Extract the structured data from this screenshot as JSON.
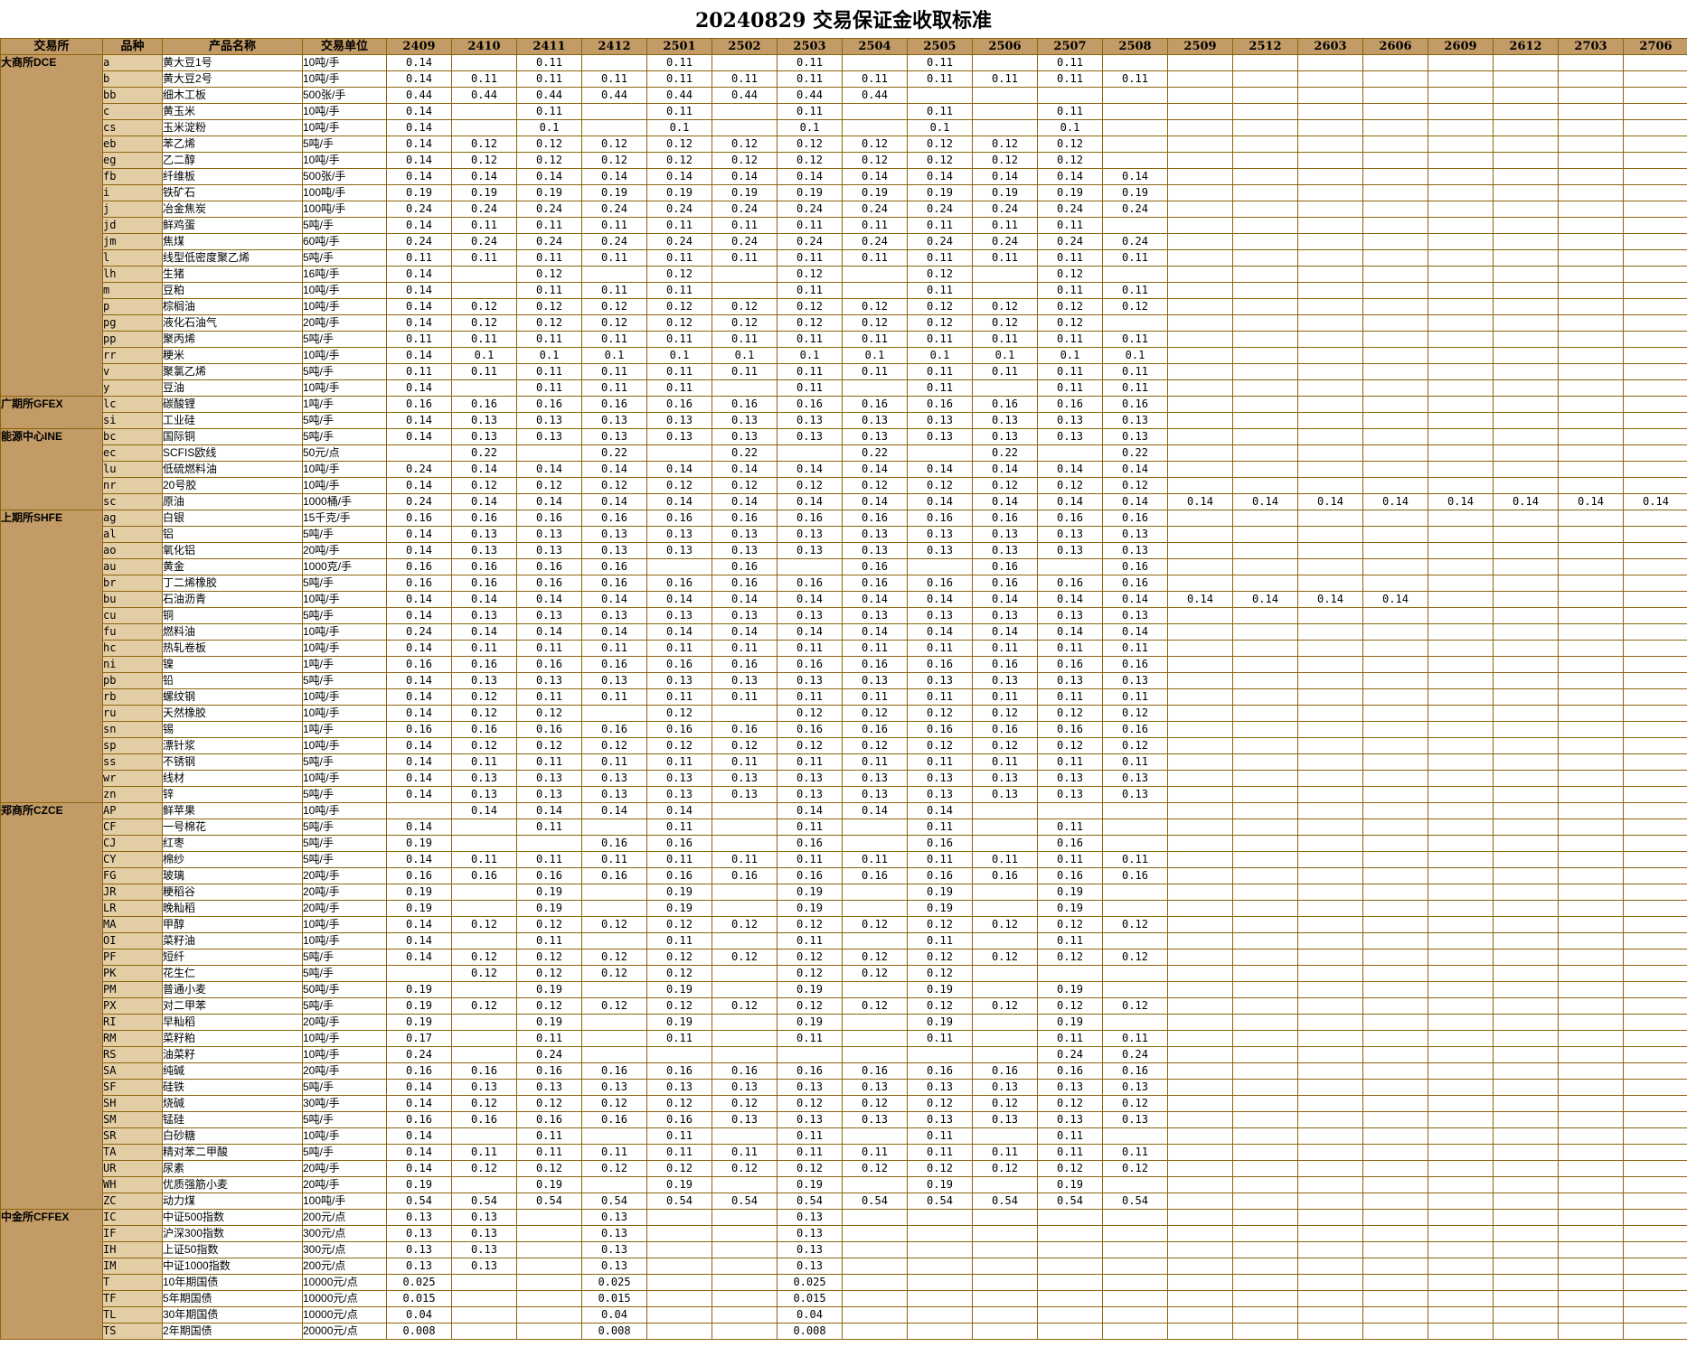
{
  "title": "20240829 交易保证金收取标准",
  "colors": {
    "header_bg": "#C39B66",
    "variety_col_bg": "#E3CDA4",
    "grid_border": "#8B650D",
    "cell_bg": "#FFFFFF",
    "text": "#000000"
  },
  "table": {
    "fixed_headers": [
      "交易所",
      "品种",
      "产品名称",
      "交易单位"
    ],
    "contract_headers": [
      "2409",
      "2410",
      "2411",
      "2412",
      "2501",
      "2502",
      "2503",
      "2504",
      "2505",
      "2506",
      "2507",
      "2508",
      "2509",
      "2512",
      "2603",
      "2606",
      "2609",
      "2612",
      "2703",
      "2706"
    ],
    "values_note": "v = comma separated margin ratios aligned to contract_headers, empty = blank cell",
    "groups": [
      {
        "exchange": "大商所DCE",
        "rows": [
          {
            "code": "a",
            "name": "黄大豆1号",
            "unit": "10吨/手",
            "v": "0.14,,0.11,,0.11,,0.11,,0.11,,0.11"
          },
          {
            "code": "b",
            "name": "黄大豆2号",
            "unit": "10吨/手",
            "v": "0.14,0.11,0.11,0.11,0.11,0.11,0.11,0.11,0.11,0.11,0.11,0.11"
          },
          {
            "code": "bb",
            "name": "细木工板",
            "unit": "500张/手",
            "v": "0.44,0.44,0.44,0.44,0.44,0.44,0.44,0.44"
          },
          {
            "code": "c",
            "name": "黄玉米",
            "unit": "10吨/手",
            "v": "0.14,,0.11,,0.11,,0.11,,0.11,,0.11"
          },
          {
            "code": "cs",
            "name": "玉米淀粉",
            "unit": "10吨/手",
            "v": "0.14,,0.1,,0.1,,0.1,,0.1,,0.1"
          },
          {
            "code": "eb",
            "name": "苯乙烯",
            "unit": "5吨/手",
            "v": "0.14,0.12,0.12,0.12,0.12,0.12,0.12,0.12,0.12,0.12,0.12"
          },
          {
            "code": "eg",
            "name": "乙二醇",
            "unit": "10吨/手",
            "v": "0.14,0.12,0.12,0.12,0.12,0.12,0.12,0.12,0.12,0.12,0.12"
          },
          {
            "code": "fb",
            "name": "纤维板",
            "unit": "500张/手",
            "v": "0.14,0.14,0.14,0.14,0.14,0.14,0.14,0.14,0.14,0.14,0.14,0.14"
          },
          {
            "code": "i",
            "name": "铁矿石",
            "unit": "100吨/手",
            "v": "0.19,0.19,0.19,0.19,0.19,0.19,0.19,0.19,0.19,0.19,0.19,0.19"
          },
          {
            "code": "j",
            "name": "冶金焦炭",
            "unit": "100吨/手",
            "v": "0.24,0.24,0.24,0.24,0.24,0.24,0.24,0.24,0.24,0.24,0.24,0.24"
          },
          {
            "code": "jd",
            "name": "鲜鸡蛋",
            "unit": "5吨/手",
            "v": "0.14,0.11,0.11,0.11,0.11,0.11,0.11,0.11,0.11,0.11,0.11"
          },
          {
            "code": "jm",
            "name": "焦煤",
            "unit": "60吨/手",
            "v": "0.24,0.24,0.24,0.24,0.24,0.24,0.24,0.24,0.24,0.24,0.24,0.24"
          },
          {
            "code": "l",
            "name": "线型低密度聚乙烯",
            "unit": "5吨/手",
            "v": "0.11,0.11,0.11,0.11,0.11,0.11,0.11,0.11,0.11,0.11,0.11,0.11"
          },
          {
            "code": "lh",
            "name": "生猪",
            "unit": "16吨/手",
            "v": "0.14,,0.12,,0.12,,0.12,,0.12,,0.12"
          },
          {
            "code": "m",
            "name": "豆粕",
            "unit": "10吨/手",
            "v": "0.14,,0.11,0.11,0.11,,0.11,,0.11,,0.11,0.11"
          },
          {
            "code": "p",
            "name": "棕榈油",
            "unit": "10吨/手",
            "v": "0.14,0.12,0.12,0.12,0.12,0.12,0.12,0.12,0.12,0.12,0.12,0.12"
          },
          {
            "code": "pg",
            "name": "液化石油气",
            "unit": "20吨/手",
            "v": "0.14,0.12,0.12,0.12,0.12,0.12,0.12,0.12,0.12,0.12,0.12"
          },
          {
            "code": "pp",
            "name": "聚丙烯",
            "unit": "5吨/手",
            "v": "0.11,0.11,0.11,0.11,0.11,0.11,0.11,0.11,0.11,0.11,0.11,0.11"
          },
          {
            "code": "rr",
            "name": "粳米",
            "unit": "10吨/手",
            "v": "0.14,0.1,0.1,0.1,0.1,0.1,0.1,0.1,0.1,0.1,0.1,0.1"
          },
          {
            "code": "v",
            "name": "聚氯乙烯",
            "unit": "5吨/手",
            "v": "0.11,0.11,0.11,0.11,0.11,0.11,0.11,0.11,0.11,0.11,0.11,0.11"
          },
          {
            "code": "y",
            "name": "豆油",
            "unit": "10吨/手",
            "v": "0.14,,0.11,0.11,0.11,,0.11,,0.11,,0.11,0.11"
          }
        ]
      },
      {
        "exchange": "广期所GFEX",
        "rows": [
          {
            "code": "lc",
            "name": "碳酸锂",
            "unit": "1吨/手",
            "v": "0.16,0.16,0.16,0.16,0.16,0.16,0.16,0.16,0.16,0.16,0.16,0.16"
          },
          {
            "code": "si",
            "name": "工业硅",
            "unit": "5吨/手",
            "v": "0.14,0.13,0.13,0.13,0.13,0.13,0.13,0.13,0.13,0.13,0.13,0.13"
          }
        ]
      },
      {
        "exchange": "能源中心INE",
        "rows": [
          {
            "code": "bc",
            "name": "国际铜",
            "unit": "5吨/手",
            "v": "0.14,0.13,0.13,0.13,0.13,0.13,0.13,0.13,0.13,0.13,0.13,0.13"
          },
          {
            "code": "ec",
            "name": "SCFIS欧线",
            "unit": "50元/点",
            "v": ",0.22,,0.22,,0.22,,0.22,,0.22,,0.22"
          },
          {
            "code": "lu",
            "name": "低硫燃料油",
            "unit": "10吨/手",
            "v": "0.24,0.14,0.14,0.14,0.14,0.14,0.14,0.14,0.14,0.14,0.14,0.14"
          },
          {
            "code": "nr",
            "name": "20号胶",
            "unit": "10吨/手",
            "v": "0.14,0.12,0.12,0.12,0.12,0.12,0.12,0.12,0.12,0.12,0.12,0.12"
          },
          {
            "code": "sc",
            "name": "原油",
            "unit": "1000桶/手",
            "v": "0.24,0.14,0.14,0.14,0.14,0.14,0.14,0.14,0.14,0.14,0.14,0.14,0.14,0.14,0.14,0.14,0.14,0.14,0.14,0.14"
          }
        ]
      },
      {
        "exchange": "上期所SHFE",
        "rows": [
          {
            "code": "ag",
            "name": "白银",
            "unit": "15千克/手",
            "v": "0.16,0.16,0.16,0.16,0.16,0.16,0.16,0.16,0.16,0.16,0.16,0.16"
          },
          {
            "code": "al",
            "name": "铝",
            "unit": "5吨/手",
            "v": "0.14,0.13,0.13,0.13,0.13,0.13,0.13,0.13,0.13,0.13,0.13,0.13"
          },
          {
            "code": "ao",
            "name": "氧化铝",
            "unit": "20吨/手",
            "v": "0.14,0.13,0.13,0.13,0.13,0.13,0.13,0.13,0.13,0.13,0.13,0.13"
          },
          {
            "code": "au",
            "name": "黄金",
            "unit": "1000克/手",
            "v": "0.16,0.16,0.16,0.16,,0.16,,0.16,,0.16,,0.16"
          },
          {
            "code": "br",
            "name": "丁二烯橡胶",
            "unit": "5吨/手",
            "v": "0.16,0.16,0.16,0.16,0.16,0.16,0.16,0.16,0.16,0.16,0.16,0.16"
          },
          {
            "code": "bu",
            "name": "石油沥青",
            "unit": "10吨/手",
            "v": "0.14,0.14,0.14,0.14,0.14,0.14,0.14,0.14,0.14,0.14,0.14,0.14,0.14,0.14,0.14,0.14"
          },
          {
            "code": "cu",
            "name": "铜",
            "unit": "5吨/手",
            "v": "0.14,0.13,0.13,0.13,0.13,0.13,0.13,0.13,0.13,0.13,0.13,0.13"
          },
          {
            "code": "fu",
            "name": "燃料油",
            "unit": "10吨/手",
            "v": "0.24,0.14,0.14,0.14,0.14,0.14,0.14,0.14,0.14,0.14,0.14,0.14"
          },
          {
            "code": "hc",
            "name": "热轧卷板",
            "unit": "10吨/手",
            "v": "0.14,0.11,0.11,0.11,0.11,0.11,0.11,0.11,0.11,0.11,0.11,0.11"
          },
          {
            "code": "ni",
            "name": "镍",
            "unit": "1吨/手",
            "v": "0.16,0.16,0.16,0.16,0.16,0.16,0.16,0.16,0.16,0.16,0.16,0.16"
          },
          {
            "code": "pb",
            "name": "铅",
            "unit": "5吨/手",
            "v": "0.14,0.13,0.13,0.13,0.13,0.13,0.13,0.13,0.13,0.13,0.13,0.13"
          },
          {
            "code": "rb",
            "name": "螺纹钢",
            "unit": "10吨/手",
            "v": "0.14,0.12,0.11,0.11,0.11,0.11,0.11,0.11,0.11,0.11,0.11,0.11"
          },
          {
            "code": "ru",
            "name": "天然橡胶",
            "unit": "10吨/手",
            "v": "0.14,0.12,0.12,,0.12,,0.12,0.12,0.12,0.12,0.12,0.12"
          },
          {
            "code": "sn",
            "name": "锡",
            "unit": "1吨/手",
            "v": "0.16,0.16,0.16,0.16,0.16,0.16,0.16,0.16,0.16,0.16,0.16,0.16"
          },
          {
            "code": "sp",
            "name": "漂针浆",
            "unit": "10吨/手",
            "v": "0.14,0.12,0.12,0.12,0.12,0.12,0.12,0.12,0.12,0.12,0.12,0.12"
          },
          {
            "code": "ss",
            "name": "不锈钢",
            "unit": "5吨/手",
            "v": "0.14,0.11,0.11,0.11,0.11,0.11,0.11,0.11,0.11,0.11,0.11,0.11"
          },
          {
            "code": "wr",
            "name": "线材",
            "unit": "10吨/手",
            "v": "0.14,0.13,0.13,0.13,0.13,0.13,0.13,0.13,0.13,0.13,0.13,0.13"
          },
          {
            "code": "zn",
            "name": "锌",
            "unit": "5吨/手",
            "v": "0.14,0.13,0.13,0.13,0.13,0.13,0.13,0.13,0.13,0.13,0.13,0.13"
          }
        ]
      },
      {
        "exchange": "郑商所CZCE",
        "rows": [
          {
            "code": "AP",
            "name": "鲜苹果",
            "unit": "10吨/手",
            "v": ",0.14,0.14,0.14,0.14,,0.14,0.14,0.14"
          },
          {
            "code": "CF",
            "name": "一号棉花",
            "unit": "5吨/手",
            "v": "0.14,,0.11,,0.11,,0.11,,0.11,,0.11"
          },
          {
            "code": "CJ",
            "name": "红枣",
            "unit": "5吨/手",
            "v": "0.19,,,0.16,0.16,,0.16,,0.16,,0.16"
          },
          {
            "code": "CY",
            "name": "棉纱",
            "unit": "5吨/手",
            "v": "0.14,0.11,0.11,0.11,0.11,0.11,0.11,0.11,0.11,0.11,0.11,0.11"
          },
          {
            "code": "FG",
            "name": "玻璃",
            "unit": "20吨/手",
            "v": "0.16,0.16,0.16,0.16,0.16,0.16,0.16,0.16,0.16,0.16,0.16,0.16"
          },
          {
            "code": "JR",
            "name": "粳稻谷",
            "unit": "20吨/手",
            "v": "0.19,,0.19,,0.19,,0.19,,0.19,,0.19"
          },
          {
            "code": "LR",
            "name": "晚籼稻",
            "unit": "20吨/手",
            "v": "0.19,,0.19,,0.19,,0.19,,0.19,,0.19"
          },
          {
            "code": "MA",
            "name": "甲醇",
            "unit": "10吨/手",
            "v": "0.14,0.12,0.12,0.12,0.12,0.12,0.12,0.12,0.12,0.12,0.12,0.12"
          },
          {
            "code": "OI",
            "name": "菜籽油",
            "unit": "10吨/手",
            "v": "0.14,,0.11,,0.11,,0.11,,0.11,,0.11"
          },
          {
            "code": "PF",
            "name": "短纤",
            "unit": "5吨/手",
            "v": "0.14,0.12,0.12,0.12,0.12,0.12,0.12,0.12,0.12,0.12,0.12,0.12"
          },
          {
            "code": "PK",
            "name": "花生仁",
            "unit": "5吨/手",
            "v": ",0.12,0.12,0.12,0.12,,0.12,0.12,0.12"
          },
          {
            "code": "PM",
            "name": "普通小麦",
            "unit": "50吨/手",
            "v": "0.19,,0.19,,0.19,,0.19,,0.19,,0.19"
          },
          {
            "code": "PX",
            "name": "对二甲苯",
            "unit": "5吨/手",
            "v": "0.19,0.12,0.12,0.12,0.12,0.12,0.12,0.12,0.12,0.12,0.12,0.12"
          },
          {
            "code": "RI",
            "name": "早籼稻",
            "unit": "20吨/手",
            "v": "0.19,,0.19,,0.19,,0.19,,0.19,,0.19"
          },
          {
            "code": "RM",
            "name": "菜籽粕",
            "unit": "10吨/手",
            "v": "0.17,,0.11,,0.11,,0.11,,0.11,,0.11,0.11"
          },
          {
            "code": "RS",
            "name": "油菜籽",
            "unit": "10吨/手",
            "v": "0.24,,0.24,,,,,,,,0.24,0.24"
          },
          {
            "code": "SA",
            "name": "纯碱",
            "unit": "20吨/手",
            "v": "0.16,0.16,0.16,0.16,0.16,0.16,0.16,0.16,0.16,0.16,0.16,0.16"
          },
          {
            "code": "SF",
            "name": "硅铁",
            "unit": "5吨/手",
            "v": "0.14,0.13,0.13,0.13,0.13,0.13,0.13,0.13,0.13,0.13,0.13,0.13"
          },
          {
            "code": "SH",
            "name": "烧碱",
            "unit": "30吨/手",
            "v": "0.14,0.12,0.12,0.12,0.12,0.12,0.12,0.12,0.12,0.12,0.12,0.12"
          },
          {
            "code": "SM",
            "name": "锰硅",
            "unit": "5吨/手",
            "v": "0.16,0.16,0.16,0.16,0.16,0.13,0.13,0.13,0.13,0.13,0.13,0.13"
          },
          {
            "code": "SR",
            "name": "白砂糖",
            "unit": "10吨/手",
            "v": "0.14,,0.11,,0.11,,0.11,,0.11,,0.11"
          },
          {
            "code": "TA",
            "name": "精对苯二甲酸",
            "unit": "5吨/手",
            "v": "0.14,0.11,0.11,0.11,0.11,0.11,0.11,0.11,0.11,0.11,0.11,0.11"
          },
          {
            "code": "UR",
            "name": "尿素",
            "unit": "20吨/手",
            "v": "0.14,0.12,0.12,0.12,0.12,0.12,0.12,0.12,0.12,0.12,0.12,0.12"
          },
          {
            "code": "WH",
            "name": "优质强筋小麦",
            "unit": "20吨/手",
            "v": "0.19,,0.19,,0.19,,0.19,,0.19,,0.19"
          },
          {
            "code": "ZC",
            "name": "动力煤",
            "unit": "100吨/手",
            "v": "0.54,0.54,0.54,0.54,0.54,0.54,0.54,0.54,0.54,0.54,0.54,0.54"
          }
        ]
      },
      {
        "exchange": "中金所CFFEX",
        "rows": [
          {
            "code": "IC",
            "name": "中证500指数",
            "unit": "200元/点",
            "v": "0.13,0.13,,0.13,,,0.13"
          },
          {
            "code": "IF",
            "name": "沪深300指数",
            "unit": "300元/点",
            "v": "0.13,0.13,,0.13,,,0.13"
          },
          {
            "code": "IH",
            "name": "上证50指数",
            "unit": "300元/点",
            "v": "0.13,0.13,,0.13,,,0.13"
          },
          {
            "code": "IM",
            "name": "中证1000指数",
            "unit": "200元/点",
            "v": "0.13,0.13,,0.13,,,0.13"
          },
          {
            "code": "T",
            "name": "10年期国债",
            "unit": "10000元/点",
            "v": "0.025,,,0.025,,,0.025"
          },
          {
            "code": "TF",
            "name": "5年期国债",
            "unit": "10000元/点",
            "v": "0.015,,,0.015,,,0.015"
          },
          {
            "code": "TL",
            "name": "30年期国债",
            "unit": "10000元/点",
            "v": "0.04,,,0.04,,,0.04"
          },
          {
            "code": "TS",
            "name": "2年期国债",
            "unit": "20000元/点",
            "v": "0.008,,,0.008,,,0.008"
          }
        ]
      }
    ]
  }
}
